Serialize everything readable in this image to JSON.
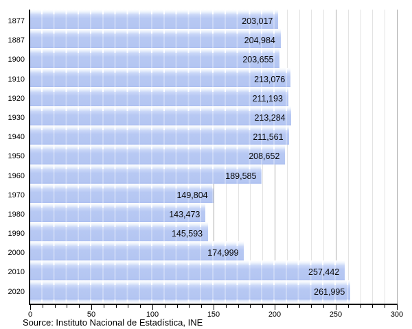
{
  "chart_data": {
    "type": "bar",
    "orientation": "horizontal",
    "title": "",
    "xlabel": "",
    "ylabel": "",
    "categories": [
      "1877",
      "1887",
      "1900",
      "1910",
      "1920",
      "1930",
      "1940",
      "1950",
      "1960",
      "1970",
      "1980",
      "1990",
      "2000",
      "2010",
      "2020"
    ],
    "values": [
      203017,
      204984,
      203655,
      213076,
      211193,
      213284,
      211561,
      208652,
      189585,
      149804,
      143473,
      145593,
      174999,
      257442,
      261995
    ],
    "value_labels": [
      "203,017",
      "204,984",
      "203,655",
      "213,076",
      "211,193",
      "213,284",
      "211,561",
      "208,652",
      "189,585",
      "149,804",
      "143,473",
      "145,593",
      "174,999",
      "257,442",
      "261,995"
    ],
    "x_axis": {
      "min": 0,
      "max": 300,
      "major_tick_step": 50,
      "minor_tick_step": 10,
      "tick_labels": [
        "0",
        "50",
        "100",
        "150",
        "200",
        "250",
        "300"
      ]
    },
    "grid": true,
    "legend": "none",
    "source": "Source: Instituto Nacional de Estadística, INE",
    "colors": {
      "bar_fill": "#b4c6f2",
      "bar_highlight": "#cbd8f8",
      "gloss_shade": "#cfdcf8",
      "grid_minor": "#e3e3e3",
      "grid_major": "#a8a8a8",
      "axis": "#000000",
      "text": "#000000",
      "background": "#ffffff"
    }
  }
}
